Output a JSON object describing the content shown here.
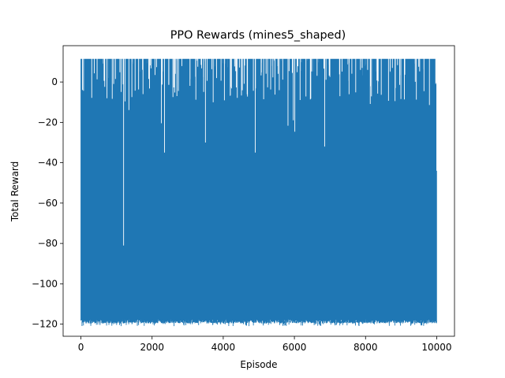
{
  "chart_data": {
    "type": "line",
    "title": "PPO Rewards (mines5_shaped)",
    "xlabel": "Episode",
    "ylabel": "Total Reward",
    "xlim": [
      -500,
      10500
    ],
    "ylim": [
      -126,
      18
    ],
    "xticks": [
      0,
      2000,
      4000,
      6000,
      8000,
      10000
    ],
    "yticks": [
      0,
      -20,
      -40,
      -60,
      -80,
      -100,
      -120
    ],
    "xtick_labels": [
      "0",
      "2000",
      "4000",
      "6000",
      "8000",
      "10000"
    ],
    "ytick_labels": [
      "0",
      "−20",
      "−40",
      "−60",
      "−80",
      "−100",
      "−120"
    ],
    "grid": false,
    "series": [
      {
        "name": "Total Reward",
        "color": "#1f77b4",
        "x": [
          0,
          10000
        ],
        "y_max": 11.5,
        "y_min": -118.5,
        "y_min_floor": -121,
        "episodes": 10000,
        "dense_band": [
          -118,
          11
        ],
        "notable_dips": [
          {
            "episode": 40,
            "reward": -120
          },
          {
            "episode": 1200,
            "reward": -81
          },
          {
            "episode": 2350,
            "reward": -35
          },
          {
            "episode": 3500,
            "reward": -30
          },
          {
            "episode": 4900,
            "reward": -35
          },
          {
            "episode": 6850,
            "reward": -32
          },
          {
            "episode": 10000,
            "reward": -44
          }
        ]
      }
    ]
  }
}
